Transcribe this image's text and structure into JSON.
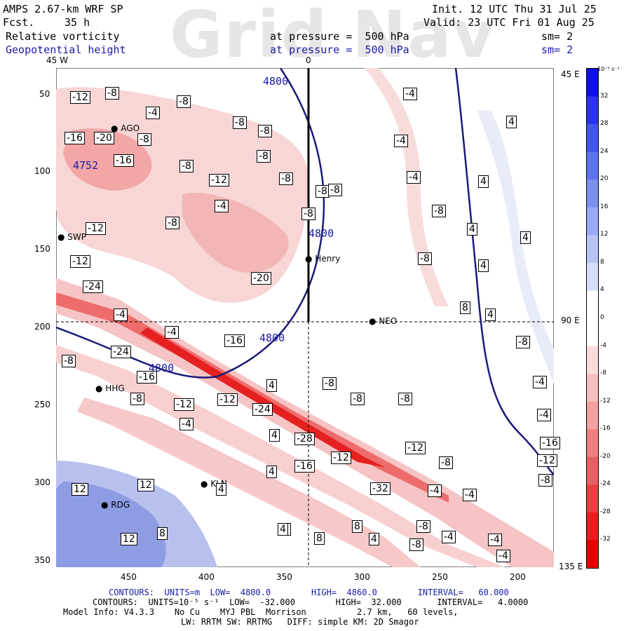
{
  "header": {
    "model": "AMPS 2.67-km WRF SP",
    "fcst_label": "Fcst.",
    "fcst_value": "35 h",
    "field1": "Relative vorticity",
    "field2": "Geopotential height",
    "pressure1": "at pressure =  500 hPa",
    "pressure2": "at pressure =  500 hPa",
    "init": "Init. 12 UTC Thu 31 Jul 25",
    "valid": "Valid: 23 UTC Fri 01 Aug 25",
    "sm1": "sm= 2",
    "sm2": "sm= 2",
    "watermark": "Grid Nav"
  },
  "axes": {
    "top_left": "45 W",
    "top_center": "0",
    "right_top": "45 E",
    "right_mid": "90 E",
    "right_bottom": "135 E",
    "y_ticks": [
      "50",
      "100",
      "150",
      "200",
      "250",
      "300",
      "350"
    ],
    "x_ticks": [
      "450",
      "400",
      "350",
      "300",
      "250",
      "200"
    ]
  },
  "colorbar": {
    "unit": "10⁻⁵ s⁻¹",
    "labels": [
      "32",
      "28",
      "24",
      "20",
      "16",
      "12",
      "8",
      "4",
      "0",
      "-4",
      "-8",
      "-12",
      "-16",
      "-20",
      "-24",
      "-28",
      "-32"
    ]
  },
  "stations": [
    {
      "name": "AGO"
    },
    {
      "name": "SWP"
    },
    {
      "name": "Henry"
    },
    {
      "name": "NEO"
    },
    {
      "name": "HHG"
    },
    {
      "name": "KLN"
    },
    {
      "name": "RDG"
    }
  ],
  "height_labels": [
    "4800",
    "4800",
    "4800",
    "4800",
    "4752"
  ],
  "vort_labels": [
    "-12",
    "-8",
    "-4",
    "-8",
    "-8",
    "-8",
    "-16",
    "-20",
    "-8",
    "-16",
    "-8",
    "-12",
    "-8",
    "-8",
    "-8",
    "-4",
    "-8",
    "-8",
    "-12",
    "-20",
    "-12",
    "-24",
    "-4",
    "-4",
    "-16",
    "-8",
    "-24",
    "-16",
    "-12",
    "-8",
    "-12",
    "-24",
    "-28",
    "-12",
    "-16",
    "-32",
    "-4",
    "-4",
    "-8",
    "-8",
    "-8",
    "-4",
    "4",
    "4",
    "4",
    "4",
    "12",
    "12",
    "12",
    "8",
    "8",
    "8",
    "8",
    "4",
    "4",
    "4",
    "4",
    "4",
    "4",
    "4",
    "4",
    "8",
    "-4",
    "-4",
    "-4",
    "-8",
    "-8",
    "-8",
    "-8",
    "-4",
    "-4",
    "-16",
    "-12",
    "-8",
    "-8",
    "-4",
    "-4",
    "-4",
    "-12",
    "-8",
    "-8"
  ],
  "footer": {
    "line1": "CONTOURS:  UNITS=m  LOW=  4800.0        HIGH=  4860.0        INTERVAL=   60.000",
    "line2": "CONTOURS:  UNITS=10⁻⁵ s⁻¹  LOW=  -32.000        HIGH=  32.000       INTERVAL=   4.0000",
    "line3": "Model Info: V4.3.3    No Cu    MYJ PBL  Morrison          2.7 km,   60 levels,",
    "line4": "LW: RRTM SW: RRTMG   DIFF: simple KM: 2D Smagor"
  }
}
